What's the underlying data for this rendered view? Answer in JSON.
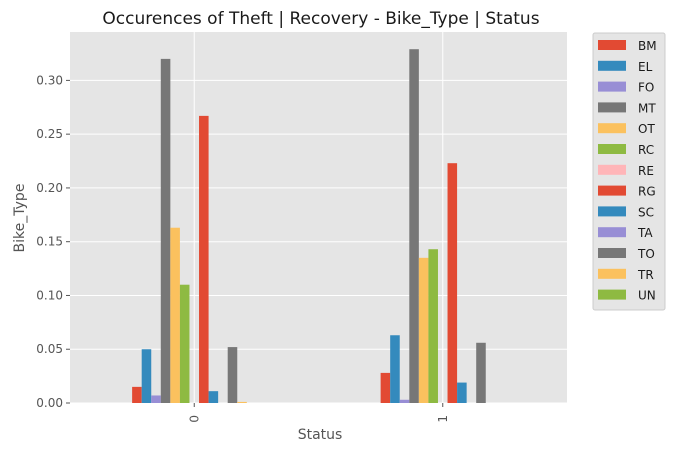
{
  "chart_data": {
    "type": "bar",
    "title": "Occurences of Theft | Recovery - Bike_Type | Status",
    "xlabel": "Status",
    "ylabel": "Bike_Type",
    "categories": [
      "0",
      "1"
    ],
    "ylim": [
      0,
      0.345
    ],
    "yticks": [
      "0.00",
      "0.05",
      "0.10",
      "0.15",
      "0.20",
      "0.25",
      "0.30"
    ],
    "grid": true,
    "legend_position": "outside-right",
    "series": [
      {
        "name": "BM",
        "color": "#E24A33",
        "values": [
          0.015,
          0.028
        ]
      },
      {
        "name": "EL",
        "color": "#348ABD",
        "values": [
          0.05,
          0.063
        ]
      },
      {
        "name": "FO",
        "color": "#988ED5",
        "values": [
          0.007,
          0.003
        ]
      },
      {
        "name": "MT",
        "color": "#777777",
        "values": [
          0.32,
          0.329
        ]
      },
      {
        "name": "OT",
        "color": "#FBC15E",
        "values": [
          0.163,
          0.135
        ]
      },
      {
        "name": "RC",
        "color": "#8EBA42",
        "values": [
          0.11,
          0.143
        ]
      },
      {
        "name": "RE",
        "color": "#FFB5B8",
        "values": [
          0.0,
          0.0
        ]
      },
      {
        "name": "RG",
        "color": "#E24A33",
        "values": [
          0.267,
          0.223
        ]
      },
      {
        "name": "SC",
        "color": "#348ABD",
        "values": [
          0.011,
          0.019
        ]
      },
      {
        "name": "TA",
        "color": "#988ED5",
        "values": [
          0.0,
          0.0
        ]
      },
      {
        "name": "TO",
        "color": "#777777",
        "values": [
          0.052,
          0.056
        ]
      },
      {
        "name": "TR",
        "color": "#FBC15E",
        "values": [
          0.001,
          0.0
        ]
      },
      {
        "name": "UN",
        "color": "#8EBA42",
        "values": [
          0.0,
          0.0
        ]
      }
    ]
  }
}
